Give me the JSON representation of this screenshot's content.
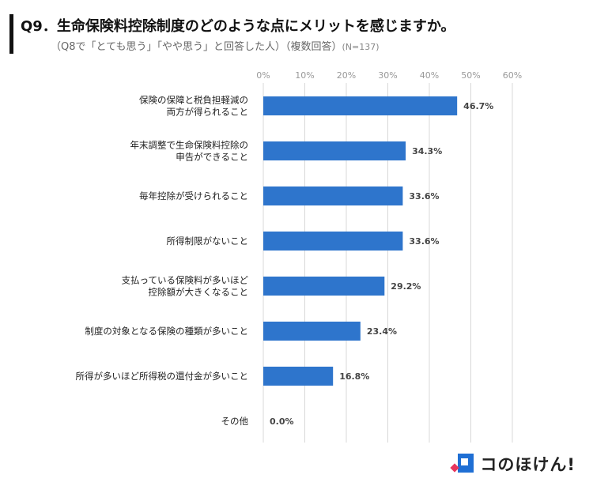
{
  "header": {
    "title": "Q9．生命保険料控除制度のどのような点にメリットを感じますか。",
    "subtitle": "（Q8で「とても思う」「やや思う」と回答した人）（複数回答）",
    "sample": "(N=137)"
  },
  "logo": {
    "text": "コのほけん!"
  },
  "colors": {
    "bar": "#2e75cc",
    "grid": "#d8d8d8"
  },
  "chart_data": {
    "type": "bar",
    "orientation": "horizontal",
    "categories": [
      [
        "保険の保障と税負担軽減の",
        "両方が得られること"
      ],
      [
        "年末調整で生命保険料控除の",
        "申告ができること"
      ],
      [
        "毎年控除が受けられること"
      ],
      [
        "所得制限がないこと"
      ],
      [
        "支払っている保険料が多いほど",
        "控除額が大きくなること"
      ],
      [
        "制度の対象となる保険の種類が多いこと"
      ],
      [
        "所得が多いほど所得税の還付金が多いこと"
      ],
      [
        "その他"
      ]
    ],
    "values": [
      46.7,
      34.3,
      33.6,
      33.6,
      29.2,
      23.4,
      16.8,
      0.0
    ],
    "value_labels": [
      "46.7%",
      "34.3%",
      "33.6%",
      "33.6%",
      "29.2%",
      "23.4%",
      "16.8%",
      "0.0%"
    ],
    "xlim": [
      0,
      60
    ],
    "ticks": [
      0,
      10,
      20,
      30,
      40,
      50,
      60
    ],
    "tick_labels": [
      "0%",
      "10%",
      "20%",
      "30%",
      "40%",
      "50%",
      "60%"
    ],
    "grid": true,
    "axis_position": "top"
  }
}
